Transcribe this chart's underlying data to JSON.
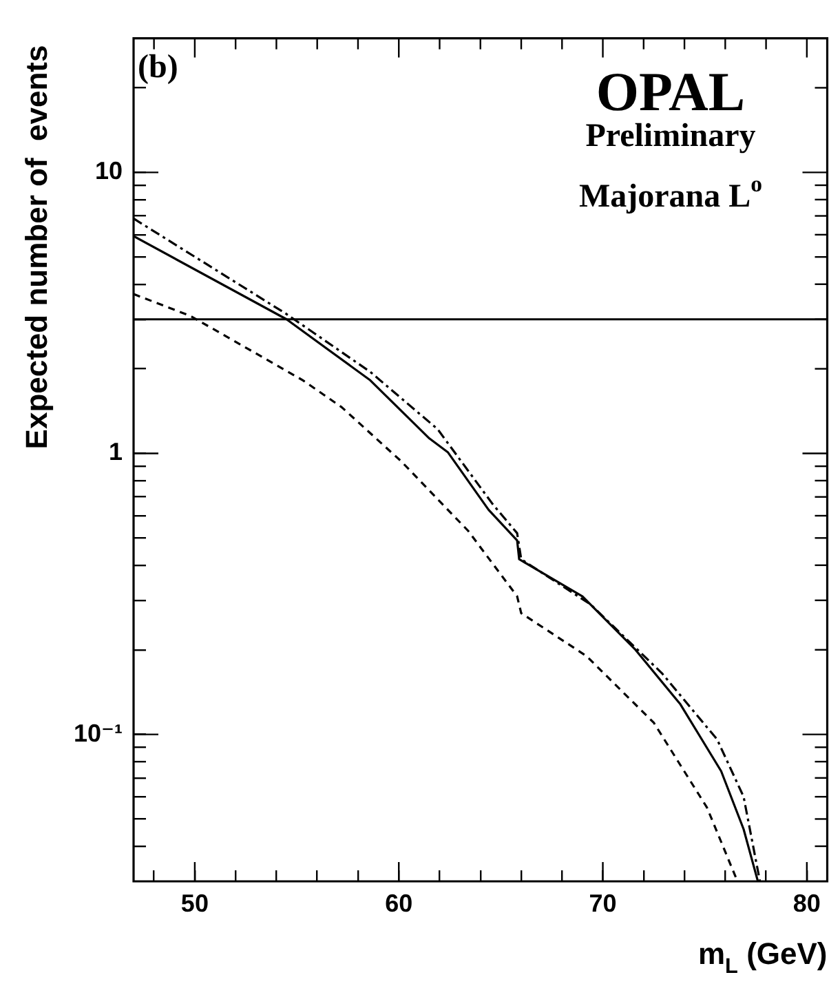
{
  "chart_data": {
    "type": "line",
    "title": "OPAL",
    "subtitle": "Preliminary",
    "annotations": [
      "(b)",
      "Majorana L$^{o}$"
    ],
    "xlabel": "m$_{L}$ (GeV)",
    "ylabel": "Expected number of  events",
    "log": "y",
    "grid": false,
    "legend": false,
    "marker": "none",
    "xlim": [
      47,
      81
    ],
    "ylim": [
      0.03,
      30
    ],
    "xticks": [
      {
        "value": 48,
        "label": null
      },
      50,
      {
        "value": 52,
        "label": null
      },
      {
        "value": 54,
        "label": null
      },
      {
        "value": 56,
        "label": null
      },
      {
        "value": 58,
        "label": null
      },
      60,
      {
        "value": 62,
        "label": null
      },
      {
        "value": 64,
        "label": null
      },
      {
        "value": 66,
        "label": null
      },
      {
        "value": 68,
        "label": null
      },
      70,
      {
        "value": 72,
        "label": null
      },
      {
        "value": 74,
        "label": null
      },
      {
        "value": 76,
        "label": null
      },
      {
        "value": 78,
        "label": null
      },
      80
    ],
    "yticks": [
      {
        "value": 0.04,
        "label": null
      },
      {
        "value": 0.05,
        "label": null
      },
      {
        "value": 0.06,
        "label": null
      },
      {
        "value": 0.07,
        "label": null
      },
      {
        "value": 0.08,
        "label": null
      },
      {
        "value": 0.09,
        "label": null
      },
      {
        "value": 0.1,
        "label": "10⁻¹"
      },
      {
        "value": 0.2,
        "label": null
      },
      {
        "value": 0.3,
        "label": null
      },
      {
        "value": 0.4,
        "label": null
      },
      {
        "value": 0.5,
        "label": null
      },
      {
        "value": 0.6,
        "label": null
      },
      {
        "value": 0.7,
        "label": null
      },
      {
        "value": 0.8,
        "label": null
      },
      {
        "value": 0.9,
        "label": null
      },
      1,
      {
        "value": 2,
        "label": null
      },
      {
        "value": 3,
        "label": null
      },
      {
        "value": 4,
        "label": null
      },
      {
        "value": 5,
        "label": null
      },
      {
        "value": 6,
        "label": null
      },
      {
        "value": 7,
        "label": null
      },
      {
        "value": 8,
        "label": null
      },
      {
        "value": 9,
        "label": null
      },
      10,
      {
        "value": 20,
        "label": null
      }
    ],
    "ref_lines": [
      {
        "axis": "y",
        "value": 3,
        "color": "#000000",
        "line_style": "solid"
      }
    ],
    "series": [
      {
        "color": "#000000",
        "line_style": "solid",
        "x": [
          47,
          54.5,
          58.6,
          61.5,
          62.4,
          64.4,
          65.8,
          65.9,
          69.0,
          71.6,
          73.8,
          75.8,
          76.9,
          77.6
        ],
        "values": [
          5.93,
          3.0,
          1.82,
          1.13,
          1.01,
          0.63,
          0.49,
          0.42,
          0.31,
          0.2,
          0.128,
          0.074,
          0.046,
          0.03
        ]
      },
      {
        "color": "#000000",
        "line_style": "dashdot",
        "x": [
          47,
          54.5,
          58.6,
          61.9,
          64.6,
          65.8,
          66.0,
          69.4,
          72.9,
          75.6,
          76.9,
          77.7
        ],
        "values": [
          6.85,
          3.13,
          1.95,
          1.22,
          0.66,
          0.52,
          0.42,
          0.29,
          0.165,
          0.096,
          0.06,
          0.03
        ]
      },
      {
        "color": "#000000",
        "line_style": "dashed",
        "x": [
          47,
          49.8,
          55.3,
          57.2,
          60.1,
          63.4,
          65.8,
          66.0,
          69.2,
          72.5,
          75.1,
          76.6
        ],
        "values": [
          3.69,
          3.08,
          1.82,
          1.46,
          0.94,
          0.53,
          0.31,
          0.27,
          0.19,
          0.11,
          0.055,
          0.03
        ]
      }
    ]
  }
}
